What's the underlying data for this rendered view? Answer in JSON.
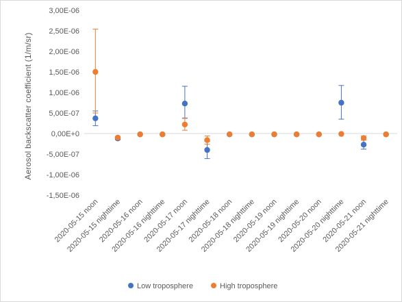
{
  "chart_data": {
    "type": "scatter",
    "title": "",
    "xlabel": "",
    "ylabel": "Aerosol backscatter coefficient (1/m/sr)",
    "ylim": [
      -1.5e-06,
      3e-06
    ],
    "ytick_labels": [
      "3,00E-06",
      "2,50E-06",
      "2,00E-06",
      "1,50E-06",
      "1,00E-06",
      "5,00E-07",
      "0,00E+0",
      "-5,00E-07",
      "-1,00E-06",
      "-1,50E-06"
    ],
    "ytick_values": [
      3e-06,
      2.5e-06,
      2e-06,
      1.5e-06,
      1e-06,
      5e-07,
      0,
      -5e-07,
      -1e-06,
      -1.5e-06
    ],
    "grid": false,
    "legend_position": "bottom",
    "categories": [
      "2020-05-15 noon",
      "2020-05-15 nighttime",
      "2020-05-16 noon",
      "2020-05-16 nighttime",
      "2020-05-17 noon",
      "2020-05-17 nighttime",
      "2020-05-18 noon",
      "2020-05-18 nighttime",
      "2020-05-19 noon",
      "2020-05-19 nighttime",
      "2020-05-20 noon",
      "2020-05-20 nighttime",
      "2020-05-21 noon",
      "2020-05-21 nighttime"
    ],
    "series": [
      {
        "name": "Low troposphere",
        "color": "#4472c4",
        "values": [
          3.7e-07,
          -1.2e-07,
          -2e-08,
          -2e-08,
          7.3e-07,
          -4e-07,
          -2e-08,
          -2e-08,
          -2e-08,
          -2e-08,
          -2e-08,
          7.5e-07,
          -2.7e-07,
          -2e-08
        ],
        "err_low": [
          1.8e-07,
          3e-08,
          0,
          0,
          3.6e-07,
          2.1e-07,
          0,
          0,
          0,
          0,
          0,
          4e-07,
          1.1e-07,
          0
        ],
        "err_high": [
          1.8e-07,
          3e-08,
          0,
          0,
          4.2e-07,
          2.1e-07,
          0,
          0,
          0,
          0,
          0,
          4.2e-07,
          1.1e-07,
          0
        ]
      },
      {
        "name": "High troposphere",
        "color": "#ed7d31",
        "values": [
          1.5e-06,
          -1e-07,
          -2e-08,
          -2e-08,
          2.2e-07,
          -1.6e-07,
          -2e-08,
          -2e-08,
          -2e-08,
          -2e-08,
          -2e-08,
          -1e-08,
          -1.1e-07,
          -2e-08
        ],
        "err_low": [
          1e-06,
          3e-08,
          0,
          0,
          1.4e-07,
          1e-07,
          0,
          0,
          0,
          0,
          0,
          0,
          5e-08,
          0
        ],
        "err_high": [
          1.04e-06,
          3e-08,
          0,
          0,
          1.6e-07,
          1e-07,
          0,
          0,
          0,
          0,
          0,
          0,
          5e-08,
          0
        ]
      }
    ]
  }
}
